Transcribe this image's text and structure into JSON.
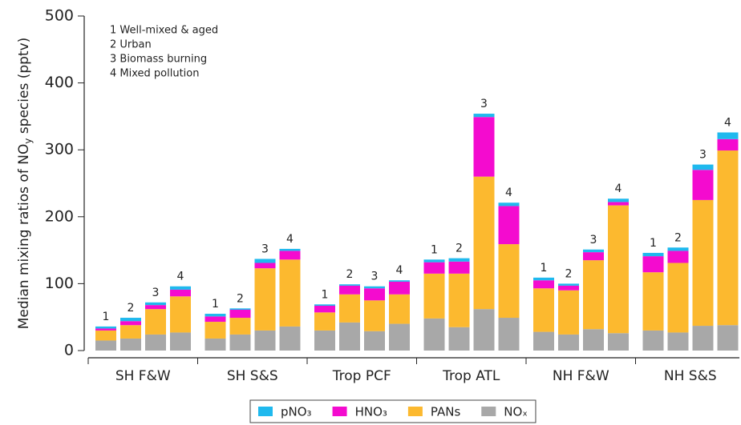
{
  "chart_data": {
    "type": "stacked_bar",
    "y_label": {
      "before": "Median mixing ratios of NO",
      "sub": "y",
      "after": " species (pptv)"
    },
    "annotations": [
      "1 Well-mixed & aged",
      "2 Urban",
      "3 Biomass burning",
      "4 Mixed pollution"
    ],
    "groups": [
      "SH F&W",
      "SH S&S",
      "Trop PCF",
      "Trop ATL",
      "NH F&W",
      "NH S&S"
    ],
    "categories": [
      "1",
      "2",
      "3",
      "4",
      "1",
      "2",
      "3",
      "4",
      "1",
      "2",
      "3",
      "4",
      "1",
      "2",
      "3",
      "4",
      "1",
      "2",
      "3",
      "4",
      "1",
      "2",
      "3",
      "4"
    ],
    "series": [
      {
        "name": "NOₓ",
        "color": "#a8a8a8",
        "values": [
          15,
          18,
          24,
          27,
          18,
          24,
          30,
          36,
          30,
          42,
          29,
          40,
          48,
          35,
          62,
          49,
          28,
          24,
          32,
          26,
          30,
          27,
          37,
          38
        ]
      },
      {
        "name": "PANs",
        "color": "#fcb92f",
        "values": [
          15,
          20,
          38,
          54,
          25,
          25,
          93,
          100,
          27,
          42,
          46,
          44,
          67,
          80,
          198,
          110,
          65,
          66,
          103,
          191,
          87,
          104,
          188,
          261
        ]
      },
      {
        "name": "HNO₃",
        "color": "#f40bcf",
        "values": [
          3,
          6,
          6,
          10,
          8,
          12,
          8,
          13,
          10,
          13,
          18,
          19,
          17,
          18,
          89,
          57,
          12,
          7,
          12,
          5,
          24,
          18,
          45,
          17
        ]
      },
      {
        "name": "pNO₃",
        "color": "#1fb9ee",
        "values": [
          3,
          5,
          4,
          5,
          4,
          2,
          6,
          3,
          2,
          2,
          3,
          2,
          4,
          5,
          5,
          5,
          4,
          3,
          4,
          5,
          5,
          5,
          8,
          10
        ]
      }
    ],
    "ylim": [
      0,
      500
    ],
    "yticks": [
      0,
      100,
      200,
      300,
      400,
      500
    ]
  }
}
